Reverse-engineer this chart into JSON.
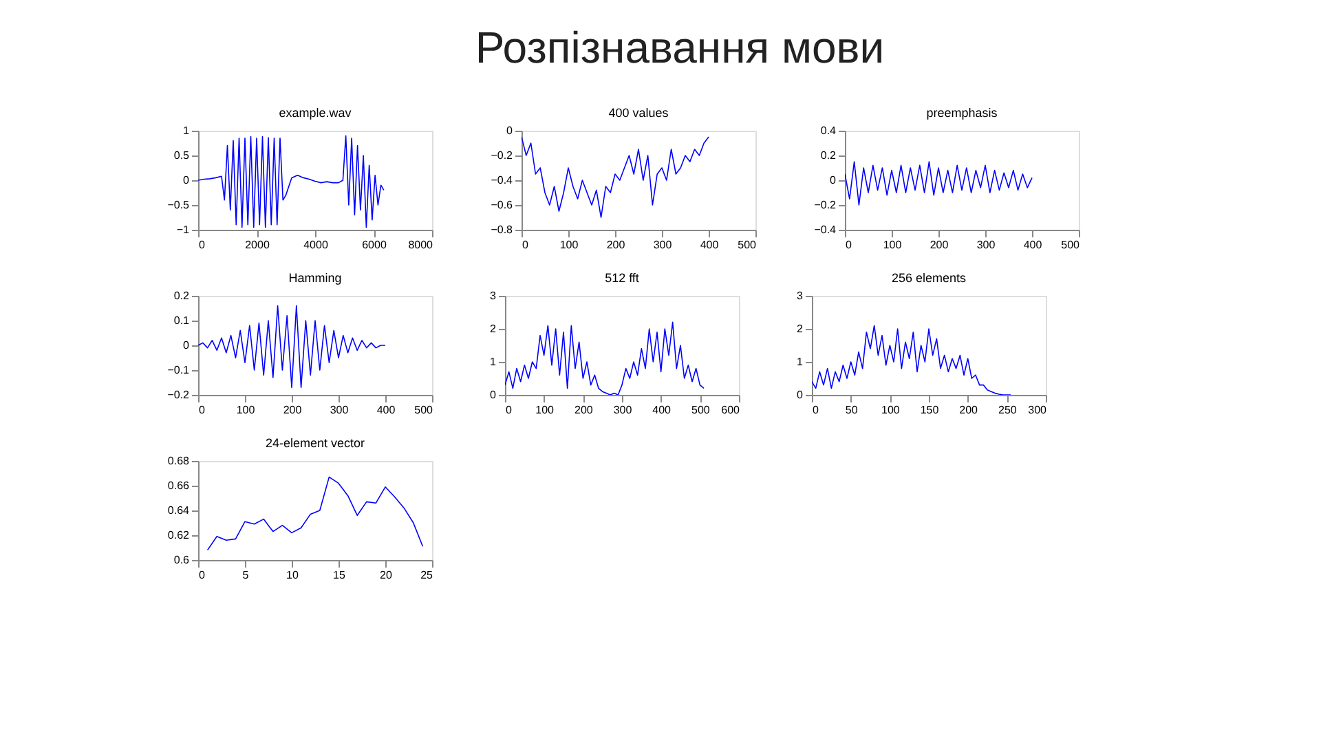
{
  "chart_data": [
    {
      "type": "other",
      "title": "Розпізнавання мови"
    },
    {
      "type": "line",
      "title": "example.wav",
      "color": "#0000ff",
      "xlim": [
        0,
        8000
      ],
      "xticks": [
        0,
        2000,
        4000,
        6000,
        8000
      ],
      "ylim": [
        -1,
        1
      ],
      "yticks": [
        -1,
        -0.5,
        0,
        0.5,
        1
      ],
      "x": [
        0,
        200,
        400,
        600,
        800,
        900,
        1000,
        1100,
        1200,
        1300,
        1400,
        1500,
        1600,
        1700,
        1800,
        1900,
        2000,
        2100,
        2200,
        2300,
        2400,
        2500,
        2600,
        2700,
        2800,
        2900,
        3000,
        3200,
        3400,
        3600,
        3800,
        4000,
        4200,
        4400,
        4600,
        4800,
        4950,
        5050,
        5150,
        5250,
        5350,
        5450,
        5550,
        5650,
        5750,
        5850,
        5950,
        6050,
        6150,
        6250,
        6350
      ],
      "values": [
        0,
        0.02,
        0.03,
        0.05,
        0.08,
        -0.4,
        0.7,
        -0.6,
        0.8,
        -0.9,
        0.85,
        -0.95,
        0.85,
        -0.9,
        0.88,
        -0.95,
        0.85,
        -0.9,
        0.88,
        -0.95,
        0.86,
        -0.9,
        0.85,
        -0.9,
        0.85,
        -0.4,
        -0.3,
        0.05,
        0.1,
        0.05,
        0.02,
        -0.02,
        -0.05,
        -0.03,
        -0.05,
        -0.05,
        0.0,
        0.9,
        -0.5,
        0.85,
        -0.7,
        0.7,
        -0.6,
        0.5,
        -0.95,
        0.3,
        -0.8,
        0.1,
        -0.5,
        -0.1,
        -0.2
      ]
    },
    {
      "type": "line",
      "title": "400 values",
      "color": "#0000ff",
      "xlim": [
        0,
        500
      ],
      "xticks": [
        0,
        100,
        200,
        300,
        400,
        500
      ],
      "ylim": [
        -0.8,
        0
      ],
      "yticks": [
        -0.8,
        -0.6,
        -0.4,
        -0.2,
        0
      ],
      "x": [
        0,
        10,
        20,
        30,
        40,
        50,
        60,
        70,
        80,
        90,
        100,
        110,
        120,
        130,
        140,
        150,
        160,
        170,
        180,
        190,
        200,
        210,
        220,
        230,
        240,
        250,
        260,
        270,
        280,
        290,
        300,
        310,
        320,
        330,
        340,
        350,
        360,
        370,
        380,
        390,
        400
      ],
      "values": [
        -0.05,
        -0.2,
        -0.1,
        -0.35,
        -0.3,
        -0.5,
        -0.6,
        -0.45,
        -0.65,
        -0.5,
        -0.3,
        -0.45,
        -0.55,
        -0.4,
        -0.5,
        -0.6,
        -0.48,
        -0.7,
        -0.45,
        -0.5,
        -0.35,
        -0.4,
        -0.3,
        -0.2,
        -0.35,
        -0.15,
        -0.4,
        -0.2,
        -0.6,
        -0.35,
        -0.3,
        -0.4,
        -0.15,
        -0.35,
        -0.3,
        -0.2,
        -0.25,
        -0.15,
        -0.2,
        -0.1,
        -0.05
      ]
    },
    {
      "type": "line",
      "title": "preemphasis",
      "color": "#0000ff",
      "xlim": [
        0,
        500
      ],
      "xticks": [
        0,
        100,
        200,
        300,
        400,
        500
      ],
      "ylim": [
        -0.4,
        0.4
      ],
      "yticks": [
        -0.4,
        -0.2,
        0,
        0.2,
        0.4
      ],
      "x": [
        0,
        10,
        20,
        30,
        40,
        50,
        60,
        70,
        80,
        90,
        100,
        110,
        120,
        130,
        140,
        150,
        160,
        170,
        180,
        190,
        200,
        210,
        220,
        230,
        240,
        250,
        260,
        270,
        280,
        290,
        300,
        310,
        320,
        330,
        340,
        350,
        360,
        370,
        380,
        390,
        400
      ],
      "values": [
        0.05,
        -0.15,
        0.15,
        -0.2,
        0.1,
        -0.1,
        0.12,
        -0.08,
        0.1,
        -0.12,
        0.08,
        -0.1,
        0.12,
        -0.1,
        0.1,
        -0.08,
        0.12,
        -0.1,
        0.15,
        -0.12,
        0.1,
        -0.1,
        0.08,
        -0.1,
        0.12,
        -0.08,
        0.1,
        -0.1,
        0.08,
        -0.06,
        0.12,
        -0.1,
        0.08,
        -0.08,
        0.06,
        -0.06,
        0.08,
        -0.08,
        0.05,
        -0.06,
        0.02
      ]
    },
    {
      "type": "line",
      "title": "Hamming",
      "color": "#0000ff",
      "xlim": [
        0,
        500
      ],
      "xticks": [
        0,
        100,
        200,
        300,
        400,
        500
      ],
      "ylim": [
        -0.2,
        0.2
      ],
      "yticks": [
        -0.2,
        -0.1,
        0,
        0.1,
        0.2
      ],
      "x": [
        0,
        10,
        20,
        30,
        40,
        50,
        60,
        70,
        80,
        90,
        100,
        110,
        120,
        130,
        140,
        150,
        160,
        170,
        180,
        190,
        200,
        210,
        220,
        230,
        240,
        250,
        260,
        270,
        280,
        290,
        300,
        310,
        320,
        330,
        340,
        350,
        360,
        370,
        380,
        390,
        400
      ],
      "values": [
        0,
        0.01,
        -0.01,
        0.02,
        -0.02,
        0.03,
        -0.03,
        0.04,
        -0.05,
        0.06,
        -0.07,
        0.08,
        -0.1,
        0.09,
        -0.12,
        0.1,
        -0.13,
        0.16,
        -0.1,
        0.12,
        -0.17,
        0.16,
        -0.17,
        0.1,
        -0.12,
        0.1,
        -0.1,
        0.08,
        -0.07,
        0.06,
        -0.05,
        0.04,
        -0.03,
        0.03,
        -0.02,
        0.02,
        -0.01,
        0.01,
        -0.01,
        0.0,
        0.0
      ]
    },
    {
      "type": "line",
      "title": "512 fft",
      "color": "#0000ff",
      "xlim": [
        0,
        600
      ],
      "xticks": [
        0,
        100,
        200,
        300,
        400,
        500,
        600
      ],
      "ylim": [
        0,
        3
      ],
      "yticks": [
        0,
        1,
        2,
        3
      ],
      "x": [
        0,
        10,
        20,
        30,
        40,
        50,
        60,
        70,
        80,
        90,
        100,
        110,
        120,
        130,
        140,
        150,
        160,
        170,
        180,
        190,
        200,
        210,
        220,
        230,
        240,
        250,
        260,
        270,
        280,
        290,
        300,
        310,
        320,
        330,
        340,
        350,
        360,
        370,
        380,
        390,
        400,
        410,
        420,
        430,
        440,
        450,
        460,
        470,
        480,
        490,
        500,
        510
      ],
      "values": [
        0.3,
        0.7,
        0.2,
        0.8,
        0.4,
        0.9,
        0.5,
        1.0,
        0.8,
        1.8,
        1.2,
        2.1,
        0.9,
        2.0,
        0.6,
        1.9,
        0.2,
        2.1,
        0.8,
        1.6,
        0.5,
        1.0,
        0.3,
        0.6,
        0.2,
        0.1,
        0.05,
        0.0,
        0.05,
        0.0,
        0.3,
        0.8,
        0.5,
        1.0,
        0.6,
        1.4,
        0.8,
        2.0,
        1.0,
        1.9,
        0.7,
        2.0,
        1.2,
        2.2,
        0.8,
        1.5,
        0.5,
        0.9,
        0.4,
        0.8,
        0.3,
        0.2
      ]
    },
    {
      "type": "line",
      "title": "256 elements",
      "color": "#0000ff",
      "xlim": [
        0,
        300
      ],
      "xticks": [
        0,
        50,
        100,
        150,
        200,
        250,
        300
      ],
      "ylim": [
        0,
        3
      ],
      "yticks": [
        0,
        1,
        2,
        3
      ],
      "x": [
        0,
        5,
        10,
        15,
        20,
        25,
        30,
        35,
        40,
        45,
        50,
        55,
        60,
        65,
        70,
        75,
        80,
        85,
        90,
        95,
        100,
        105,
        110,
        115,
        120,
        125,
        130,
        135,
        140,
        145,
        150,
        155,
        160,
        165,
        170,
        175,
        180,
        185,
        190,
        195,
        200,
        205,
        210,
        215,
        220,
        225,
        230,
        235,
        240,
        245,
        250,
        255
      ],
      "values": [
        0.4,
        0.2,
        0.7,
        0.3,
        0.8,
        0.2,
        0.7,
        0.4,
        0.9,
        0.5,
        1.0,
        0.6,
        1.3,
        0.8,
        1.9,
        1.4,
        2.1,
        1.2,
        1.8,
        0.9,
        1.5,
        1.0,
        2.0,
        0.8,
        1.6,
        1.1,
        1.9,
        0.7,
        1.5,
        1.0,
        2.0,
        1.2,
        1.7,
        0.8,
        1.2,
        0.7,
        1.1,
        0.8,
        1.2,
        0.6,
        1.1,
        0.5,
        0.6,
        0.3,
        0.3,
        0.15,
        0.1,
        0.05,
        0.02,
        0.0,
        0.0,
        0.0
      ]
    },
    {
      "type": "line",
      "title": "24-element vector",
      "color": "#0000ff",
      "xlim": [
        0,
        25
      ],
      "xticks": [
        0,
        5,
        10,
        15,
        20,
        25
      ],
      "ylim": [
        0.6,
        0.68
      ],
      "yticks": [
        0.6,
        0.62,
        0.64,
        0.66,
        0.68
      ],
      "x": [
        1,
        2,
        3,
        4,
        5,
        6,
        7,
        8,
        9,
        10,
        11,
        12,
        13,
        14,
        15,
        16,
        17,
        18,
        19,
        20,
        21,
        22,
        23,
        24
      ],
      "values": [
        0.608,
        0.619,
        0.616,
        0.617,
        0.631,
        0.629,
        0.633,
        0.623,
        0.628,
        0.622,
        0.626,
        0.637,
        0.64,
        0.667,
        0.662,
        0.652,
        0.636,
        0.647,
        0.646,
        0.659,
        0.651,
        0.642,
        0.63,
        0.611
      ]
    }
  ]
}
